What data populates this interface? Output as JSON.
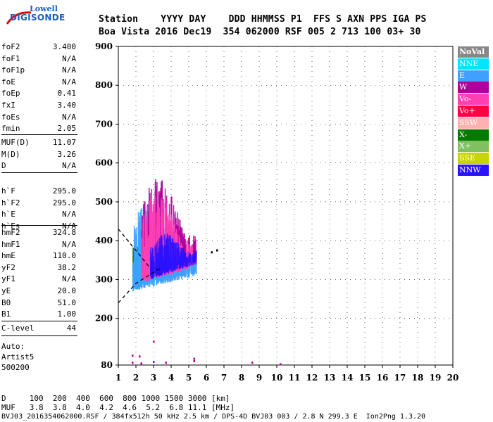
{
  "logo": {
    "line1": "Lowell",
    "line2": "DIGISONDE"
  },
  "header": {
    "row1": "Station    YYYY DAY    DDD HHMMSS P1  FFS S AXN PPS IGA PS",
    "row2": "Boa Vista 2016 Dec19  354 062000 RSF 005 2 713 100 03+ 30"
  },
  "params_group1": [
    {
      "name": "foF2",
      "value": "3.400"
    },
    {
      "name": "foF1",
      "value": "N/A"
    },
    {
      "name": "foF1p",
      "value": "N/A"
    },
    {
      "name": "foE",
      "value": "N/A"
    },
    {
      "name": "foEp",
      "value": "0.41"
    },
    {
      "name": "fxI",
      "value": "3.40"
    },
    {
      "name": "foEs",
      "value": "N/A"
    },
    {
      "name": "fmin",
      "value": "2.05"
    }
  ],
  "params_group2": [
    {
      "name": "MUF(D)",
      "value": "11.07"
    },
    {
      "name": "M(D)",
      "value": "3.26"
    },
    {
      "name": "D",
      "value": "N/A"
    }
  ],
  "params_group3": [
    {
      "name": "h`F",
      "value": "295.0"
    },
    {
      "name": "h`F2",
      "value": "295.0"
    },
    {
      "name": "h`E",
      "value": "N/A"
    },
    {
      "name": "h`Es",
      "value": "N/A"
    }
  ],
  "params_group4": [
    {
      "name": "hmF2",
      "value": "324.8"
    },
    {
      "name": "hmF1",
      "value": "N/A"
    },
    {
      "name": "hmE",
      "value": "110.0"
    },
    {
      "name": "yF2",
      "value": "38.2"
    },
    {
      "name": "yF1",
      "value": "N/A"
    },
    {
      "name": "yE",
      "value": "20.0"
    },
    {
      "name": "B0",
      "value": "51.0"
    },
    {
      "name": "B1",
      "value": "1.00"
    }
  ],
  "params_group5": [
    {
      "name": "C-level",
      "value": "44"
    }
  ],
  "autoscaling": {
    "line1": "Auto:",
    "line2": "Artist5",
    "line3": "500200"
  },
  "legend": [
    {
      "label": "NoVal",
      "color": "#888888"
    },
    {
      "label": "NNE",
      "color": "#00e5ff"
    },
    {
      "label": "E",
      "color": "#3fa0ff"
    },
    {
      "label": "W",
      "color": "#b0009a"
    },
    {
      "label": "Vo-",
      "color": "#ff3fb4"
    },
    {
      "label": "Vo+",
      "color": "#ff0044"
    },
    {
      "label": "SSW",
      "color": "#ffb0b0"
    },
    {
      "label": "X-",
      "color": "#007a00"
    },
    {
      "label": "X+",
      "color": "#80c060"
    },
    {
      "label": "SSE",
      "color": "#c8d400"
    },
    {
      "label": "NNW",
      "color": "#2a12ff"
    }
  ],
  "footer": {
    "d_row": "D     100  200  400  600  800 1000 1500 3000 [km]",
    "muf_row": "MUF   3.8  3.8  4.0  4.2  4.6  5.2  6.8 11.1 [MHz]",
    "file_row": "BVJ03_2016354062000.RSF / 384fx512h 50 kHz 2.5 km / DPS-4D BVJ03 003 / 2.8 N 299.3 E  Ion2Png 1.3.20"
  },
  "chart_data": {
    "type": "scatter",
    "title": "",
    "xlabel": "",
    "ylabel": "",
    "xlim": [
      1,
      20
    ],
    "ylim": [
      80,
      900
    ],
    "xticks": [
      1,
      2,
      3,
      4,
      5,
      6,
      7,
      8,
      9,
      10,
      11,
      12,
      13,
      14,
      15,
      16,
      17,
      18,
      19,
      20
    ],
    "yticks": [
      80,
      200,
      300,
      400,
      500,
      600,
      700,
      800,
      900
    ],
    "grid": true,
    "legend_position": "right",
    "traces": [
      {
        "name": "X-",
        "min_freq": 1.8,
        "max_freq": 3.4,
        "min_h": 290,
        "max_h": 420
      },
      {
        "name": "NNE",
        "min_freq": 1.8,
        "max_freq": 4.0,
        "min_h": 270,
        "max_h": 330
      },
      {
        "name": "E",
        "min_freq": 1.8,
        "max_freq": 5.4,
        "min_h": 270,
        "max_h": 510
      },
      {
        "name": "W",
        "min_freq": 2.3,
        "max_freq": 5.4,
        "min_h": 300,
        "max_h": 560
      },
      {
        "name": "Vo-",
        "min_freq": 2.3,
        "max_freq": 5.2,
        "min_h": 290,
        "max_h": 520
      },
      {
        "name": "NNW",
        "min_freq": 2.8,
        "max_freq": 5.4,
        "min_h": 300,
        "max_h": 420
      }
    ],
    "profile_curves": [
      {
        "name": "upper",
        "points": [
          [
            1,
            430
          ],
          [
            2,
            375
          ],
          [
            2.8,
            330
          ]
        ]
      },
      {
        "name": "lower",
        "points": [
          [
            1,
            240
          ],
          [
            2,
            290
          ],
          [
            3.4,
            330
          ]
        ]
      }
    ],
    "isolated_points": [
      {
        "x": 6.3,
        "y": 370
      },
      {
        "x": 6.6,
        "y": 375
      },
      {
        "x": 1.8,
        "y": 104
      },
      {
        "x": 2.2,
        "y": 102
      },
      {
        "x": 3.0,
        "y": 140
      },
      {
        "x": 1.8,
        "y": 86
      },
      {
        "x": 2.3,
        "y": 84
      },
      {
        "x": 3.0,
        "y": 88
      },
      {
        "x": 3.7,
        "y": 86
      },
      {
        "x": 5.3,
        "y": 90
      },
      {
        "x": 5.3,
        "y": 96
      },
      {
        "x": 8.6,
        "y": 86
      },
      {
        "x": 10.2,
        "y": 82
      }
    ]
  }
}
